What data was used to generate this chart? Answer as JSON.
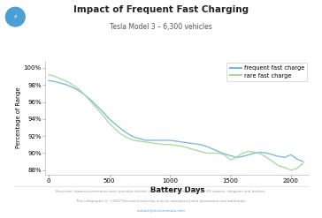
{
  "title": "Impact of Frequent Fast Charging",
  "subtitle": "Tesla Model 3 – 6,300 vehicles",
  "xlabel": "Battery Days",
  "ylabel": "Percentage of Range",
  "background_color": "#ffffff",
  "plot_bg_color": "#ffffff",
  "line1_color": "#7ab8d9",
  "line2_color": "#a8d8a0",
  "legend_labels": [
    "frequent fast charge",
    "rare fast charge"
  ],
  "footer_line1": "Recurrent (www.recurrentauto.com) provides electric vehicle battery health reports for EV owners, shoppers and dealers.",
  "footer_line2": "This infographic is ©2022 Recurrent and may only be reproduced with permission and attribution.",
  "footer_line3": "contact@recurrentauto.com",
  "yticks": [
    88,
    90,
    92,
    94,
    96,
    98,
    100
  ],
  "xticks": [
    0,
    500,
    1000,
    1500,
    2000
  ],
  "ylim": [
    87.5,
    100.8
  ],
  "xlim": [
    -30,
    2150
  ],
  "frequent_x": [
    0,
    50,
    100,
    150,
    200,
    250,
    300,
    350,
    400,
    450,
    500,
    550,
    600,
    650,
    700,
    750,
    800,
    850,
    900,
    950,
    1000,
    1050,
    1100,
    1150,
    1200,
    1250,
    1300,
    1350,
    1400,
    1450,
    1500,
    1550,
    1600,
    1650,
    1700,
    1750,
    1800,
    1850,
    1900,
    1950,
    2000,
    2050,
    2100
  ],
  "frequent_y": [
    98.5,
    98.4,
    98.2,
    98.0,
    97.7,
    97.3,
    96.8,
    96.2,
    95.5,
    94.8,
    94.0,
    93.4,
    92.8,
    92.3,
    91.9,
    91.7,
    91.5,
    91.5,
    91.5,
    91.5,
    91.5,
    91.4,
    91.3,
    91.2,
    91.1,
    91.0,
    90.8,
    90.5,
    90.2,
    89.9,
    89.7,
    89.5,
    89.6,
    89.8,
    90.0,
    90.1,
    90.0,
    89.8,
    89.6,
    89.5,
    89.8,
    89.3,
    89.0
  ],
  "rare_x": [
    0,
    50,
    100,
    150,
    200,
    250,
    300,
    350,
    400,
    450,
    500,
    550,
    600,
    650,
    700,
    750,
    800,
    850,
    900,
    950,
    1000,
    1050,
    1100,
    1150,
    1200,
    1250,
    1300,
    1350,
    1400,
    1450,
    1500,
    1550,
    1600,
    1650,
    1700,
    1750,
    1800,
    1850,
    1900,
    1950,
    2000,
    2050,
    2100
  ],
  "rare_y": [
    99.2,
    99.0,
    98.7,
    98.4,
    98.0,
    97.5,
    96.8,
    96.0,
    95.2,
    94.4,
    93.5,
    92.8,
    92.2,
    91.8,
    91.5,
    91.4,
    91.3,
    91.2,
    91.1,
    91.0,
    91.0,
    90.9,
    90.8,
    90.6,
    90.4,
    90.2,
    90.0,
    90.0,
    90.0,
    89.8,
    89.2,
    89.5,
    90.0,
    90.2,
    90.1,
    89.9,
    89.5,
    89.0,
    88.5,
    88.3,
    88.0,
    88.2,
    88.8
  ],
  "icon_color": "#4a9fd5"
}
